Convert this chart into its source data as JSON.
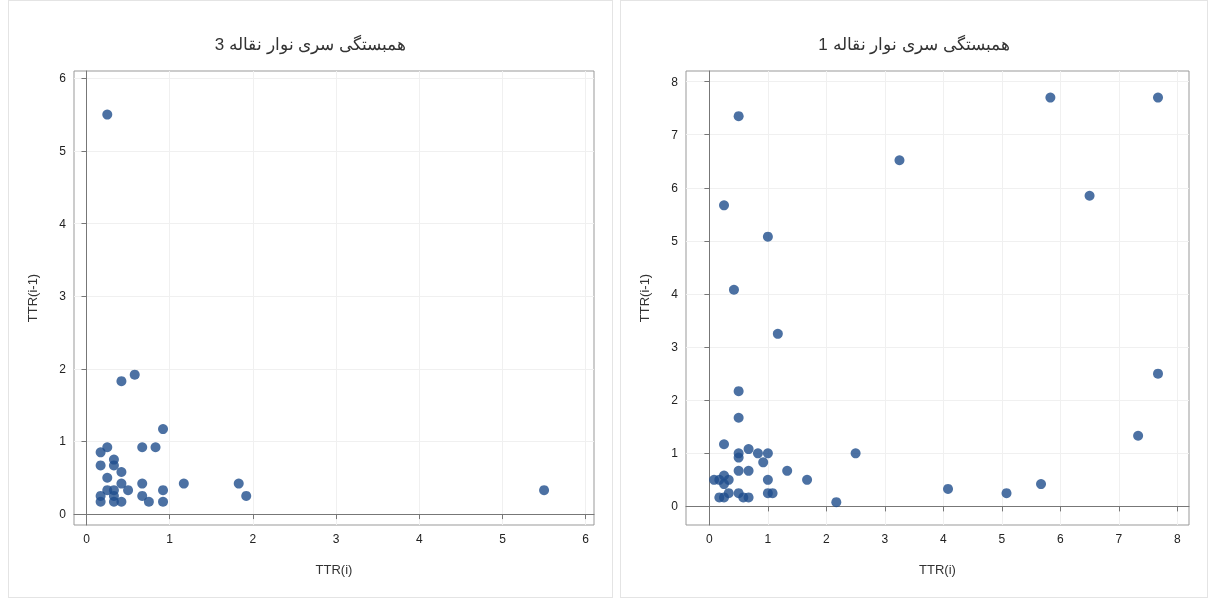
{
  "chart_data": [
    {
      "type": "scatter",
      "title": "همبستگی سری نوار نقاله 3",
      "xlabel": "TTR(i)",
      "ylabel": "TTR(i-1)",
      "xlim": [
        -0.15,
        6.1
      ],
      "ylim": [
        -0.15,
        6.1
      ],
      "xticks": [
        0,
        1,
        2,
        3,
        4,
        5,
        6
      ],
      "yticks": [
        0,
        1,
        2,
        3,
        4,
        5,
        6
      ],
      "grid": true,
      "marker": "circle",
      "series": [
        {
          "color": "#1f4e8c",
          "x": [
            0.25,
            0.42,
            0.58,
            0.92,
            0.17,
            0.25,
            0.67,
            0.83,
            0.17,
            0.33,
            0.33,
            0.42,
            0.25,
            0.42,
            0.67,
            1.17,
            1.83,
            0.25,
            0.33,
            0.5,
            0.92,
            5.5,
            0.17,
            0.33,
            0.67,
            1.92,
            0.17,
            0.33,
            0.42,
            0.75,
            0.92
          ],
          "values": [
            5.5,
            1.83,
            1.92,
            1.17,
            0.85,
            0.92,
            0.92,
            0.92,
            0.67,
            0.75,
            0.67,
            0.58,
            0.5,
            0.42,
            0.42,
            0.42,
            0.42,
            0.33,
            0.33,
            0.33,
            0.33,
            0.33,
            0.25,
            0.25,
            0.25,
            0.25,
            0.17,
            0.17,
            0.17,
            0.17,
            0.17
          ]
        }
      ]
    },
    {
      "type": "scatter",
      "title": "همبستگی سری نوار نقاله 1",
      "xlabel": "TTR(i)",
      "ylabel": "TTR(i-1)",
      "xlim": [
        -0.4,
        8.2
      ],
      "ylim": [
        -0.35,
        8.2
      ],
      "xticks": [
        0,
        1,
        2,
        3,
        4,
        5,
        6,
        7,
        8
      ],
      "yticks": [
        0,
        1,
        2,
        3,
        4,
        5,
        6,
        7,
        8
      ],
      "grid": true,
      "marker": "circle",
      "series": [
        {
          "color": "#1f4e8c",
          "x": [
            0.5,
            5.83,
            7.67,
            3.25,
            0.25,
            6.5,
            1.0,
            0.42,
            1.17,
            7.67,
            0.5,
            0.5,
            7.33,
            0.25,
            0.67,
            0.5,
            0.5,
            0.83,
            1.0,
            2.5,
            0.92,
            0.5,
            0.67,
            1.33,
            0.08,
            0.17,
            0.25,
            0.33,
            1.0,
            1.67,
            0.25,
            5.67,
            4.08,
            0.33,
            1.0,
            1.08,
            5.08,
            0.17,
            0.25,
            0.5,
            0.58,
            0.67,
            2.17
          ],
          "values": [
            7.35,
            7.7,
            7.7,
            6.52,
            5.67,
            5.85,
            5.08,
            4.08,
            3.25,
            2.5,
            2.17,
            1.67,
            1.33,
            1.17,
            1.08,
            1.0,
            0.92,
            1.0,
            1.0,
            1.0,
            0.83,
            0.67,
            0.67,
            0.67,
            0.5,
            0.5,
            0.58,
            0.5,
            0.5,
            0.5,
            0.42,
            0.42,
            0.33,
            0.25,
            0.25,
            0.25,
            0.25,
            0.17,
            0.17,
            0.25,
            0.17,
            0.17,
            0.08
          ]
        }
      ]
    }
  ]
}
